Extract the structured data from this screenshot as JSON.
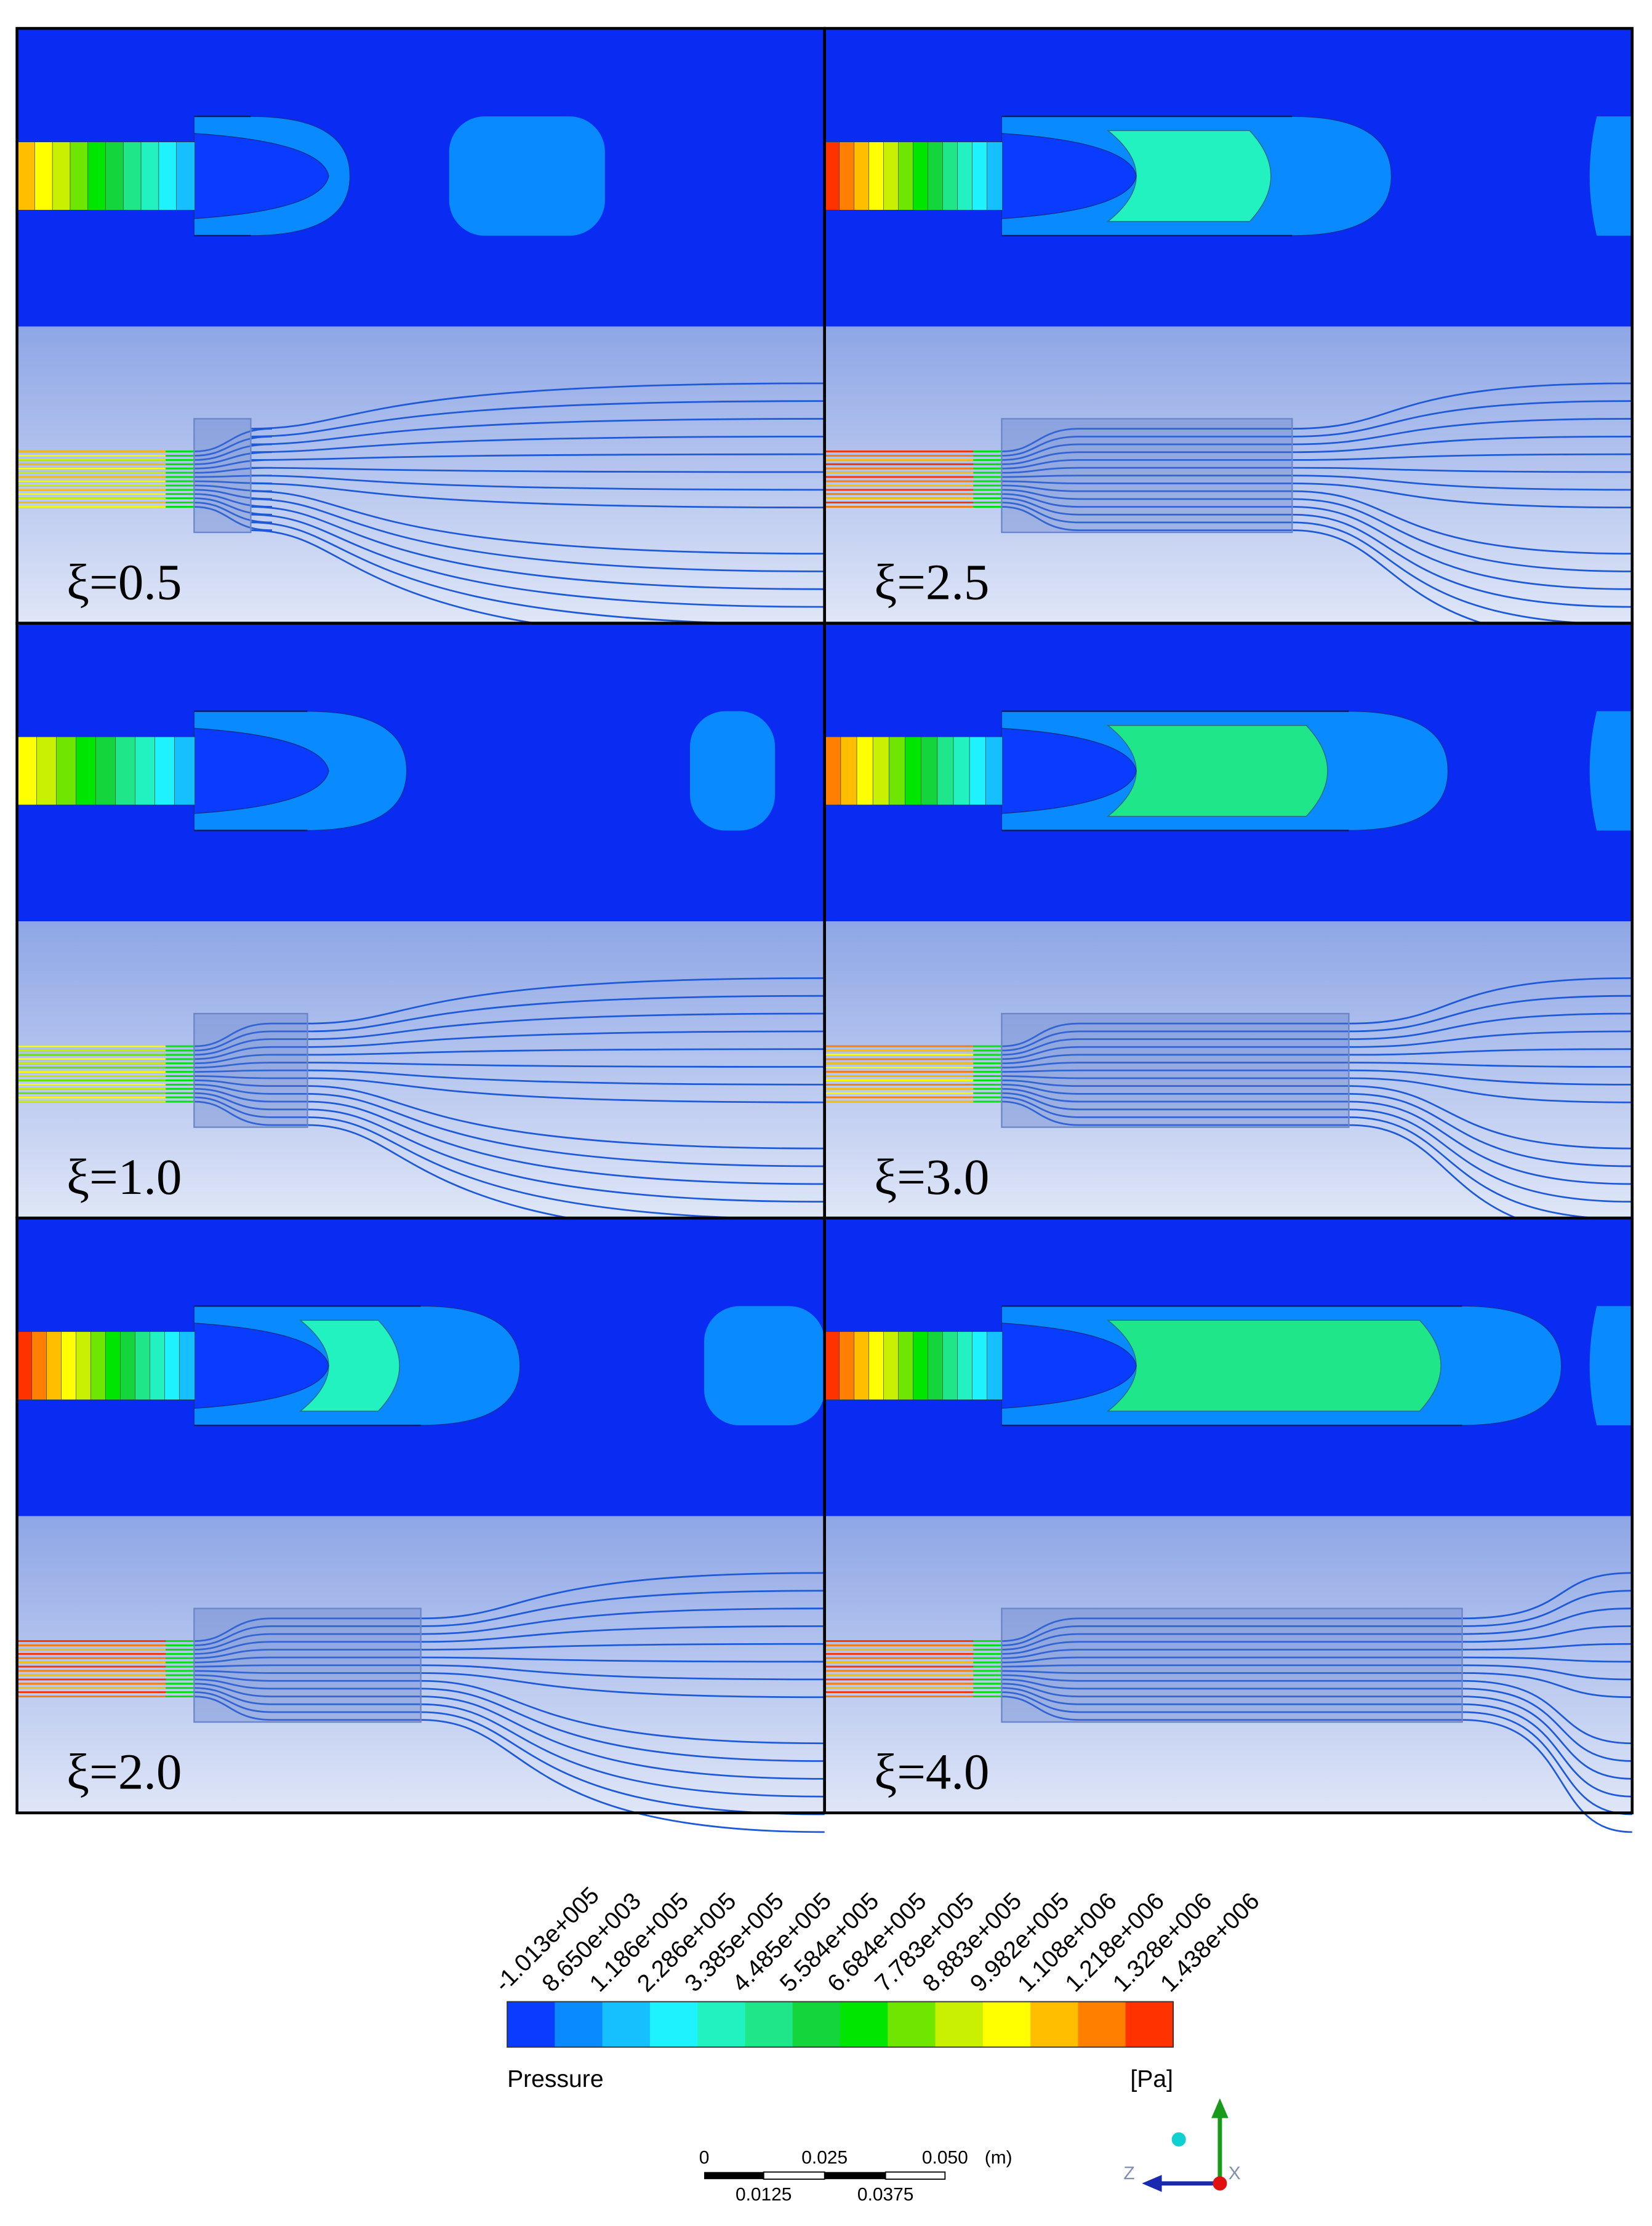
{
  "panels": [
    {
      "label": "ξ=0.5"
    },
    {
      "label": "ξ=2.5"
    },
    {
      "label": "ξ=1.0"
    },
    {
      "label": "ξ=3.0"
    },
    {
      "label": "ξ=2.0"
    },
    {
      "label": "ξ=4.0"
    }
  ],
  "colorbar": {
    "title": "Pressure",
    "unit": "[Pa]",
    "labels": [
      "-1.013e+005",
      "8.650e+003",
      "1.186e+005",
      "2.286e+005",
      "3.385e+005",
      "4.485e+005",
      "5.584e+005",
      "6.684e+005",
      "7.783e+005",
      "8.883e+005",
      "9.982e+005",
      "1.108e+006",
      "1.218e+006",
      "1.328e+006",
      "1.438e+006"
    ],
    "colors": [
      "#0a3cff",
      "#0a8aff",
      "#16c0ff",
      "#1ef2ff",
      "#22f2c0",
      "#20e68a",
      "#14d63c",
      "#00e600",
      "#6ee600",
      "#c8f000",
      "#ffff00",
      "#ffbe00",
      "#ff8000",
      "#ff3200"
    ]
  },
  "scale_bar": {
    "top_labels": [
      "0",
      "0.025",
      "0.050"
    ],
    "unit": "(m)",
    "bottom_labels": [
      "0.0125",
      "0.0375"
    ]
  },
  "axis_triad": {
    "z": "Z",
    "x": "X"
  }
}
